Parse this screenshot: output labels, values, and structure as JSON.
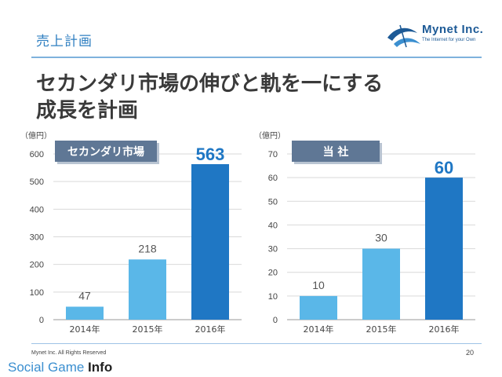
{
  "header": {
    "section_title": "売上計画",
    "logo_text": "Mynet Inc.",
    "logo_tagline": "The Internet for your Own"
  },
  "headline": {
    "line1": "セカンダリ市場の伸びと軌を一にする",
    "line2": "成長を計画"
  },
  "footer": {
    "copyright": "Mynet Inc. All Rights Reserved",
    "page_number": "20",
    "watermark_main": "Social Game ",
    "watermark_bold": "Info"
  },
  "colors": {
    "light_bar": "#5ab7e8",
    "dark_bar": "#1f77c4",
    "badge": "#5f7795",
    "title": "#2f7fc1"
  },
  "chart_data": [
    {
      "type": "bar",
      "title": "セカンダリ市場",
      "unit_label": "（億円）",
      "categories": [
        "2014年",
        "2015年",
        "2016年"
      ],
      "values": [
        47,
        218,
        563
      ],
      "ylim": [
        0,
        600
      ],
      "yticks": [
        0,
        100,
        200,
        300,
        400,
        500,
        600
      ],
      "grid": true
    },
    {
      "type": "bar",
      "title": "当 社",
      "unit_label": "（億円）",
      "categories": [
        "2014年",
        "2015年",
        "2016年"
      ],
      "values": [
        10,
        30,
        60
      ],
      "ylim": [
        0,
        70
      ],
      "yticks": [
        0,
        10,
        20,
        30,
        40,
        50,
        60,
        70
      ],
      "grid": true
    }
  ]
}
